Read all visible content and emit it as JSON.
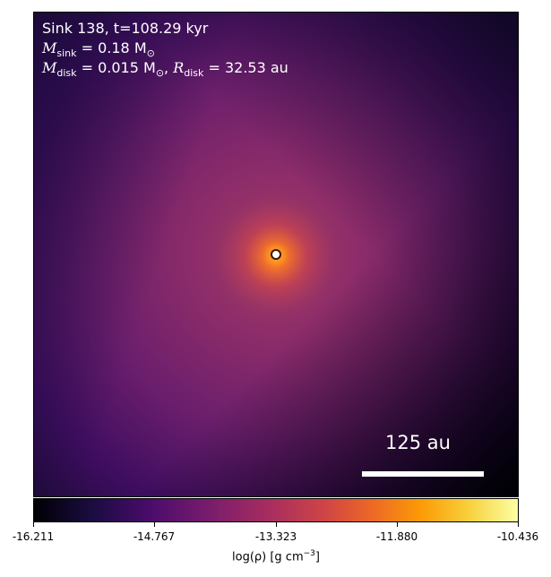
{
  "annotation": {
    "line1": "Sink 138, t=108.29 kyr",
    "m_sink_symbol": "M",
    "m_sink_sub": "sink",
    "m_sink_value": " = 0.18 M",
    "m_sink_unit_sub": "⊙",
    "m_disk_symbol": "M",
    "m_disk_sub": "disk",
    "m_disk_value": " = 0.015 M",
    "m_disk_unit_sub": "⊙",
    "comma": ", ",
    "r_disk_symbol": "R",
    "r_disk_sub": "disk",
    "r_disk_value": " = 32.53 au"
  },
  "scalebar": {
    "label": "125 au"
  },
  "colorbar": {
    "ticks": [
      "-16.211",
      "-14.767",
      "-13.323",
      "-11.880",
      "-10.436"
    ],
    "label_main": "log(ρ) [g cm",
    "label_sup": "−3",
    "label_end": "]",
    "colormap": "inferno"
  },
  "colors": {
    "background_dark": "#1b0c41",
    "panel_mid": "#781c6d",
    "core": "#fb9b06"
  }
}
